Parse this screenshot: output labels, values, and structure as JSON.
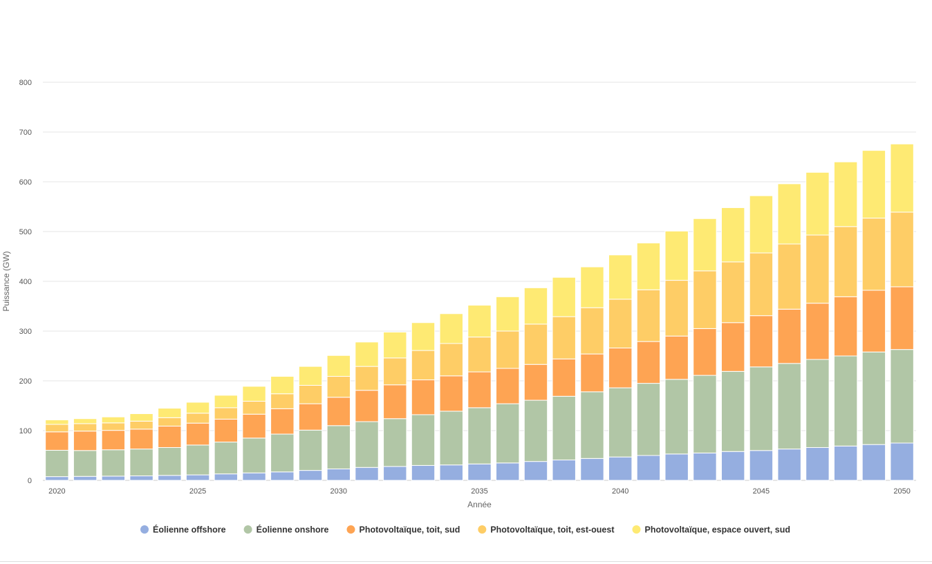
{
  "chart_data": {
    "type": "bar",
    "stacked": true,
    "xlabel": "Année",
    "ylabel": "Puissance (GW)",
    "ylim": [
      0,
      800
    ],
    "yticks": [
      0,
      100,
      200,
      300,
      400,
      500,
      600,
      700,
      800
    ],
    "xticks": [
      2020,
      2025,
      2030,
      2035,
      2040,
      2045,
      2050
    ],
    "grid": true,
    "legend_position": "bottom-center",
    "categories": [
      2020,
      2021,
      2022,
      2023,
      2024,
      2025,
      2026,
      2027,
      2028,
      2029,
      2030,
      2031,
      2032,
      2033,
      2034,
      2035,
      2036,
      2037,
      2038,
      2039,
      2040,
      2041,
      2042,
      2043,
      2044,
      2045,
      2046,
      2047,
      2048,
      2049,
      2050
    ],
    "series": [
      {
        "name": "Éolienne offshore",
        "color": "#95aee0",
        "values": [
          7.5,
          8,
          8.5,
          9,
          10,
          11,
          13,
          15,
          17,
          20,
          23,
          26,
          28,
          30,
          31,
          33,
          35,
          38,
          41,
          44,
          47,
          50,
          53,
          55,
          58,
          60,
          63,
          66,
          69,
          72,
          75
        ]
      },
      {
        "name": "Éolienne onshore",
        "color": "#b1c6a6",
        "values": [
          53,
          52,
          53,
          54,
          56,
          60,
          64,
          70,
          76,
          81,
          87,
          92,
          96,
          102,
          108,
          113,
          119,
          123,
          128,
          134,
          139,
          145,
          150,
          156,
          161,
          168,
          172,
          177,
          181,
          186,
          188
        ]
      },
      {
        "name": "Photovoltaïque, toit, sud",
        "color": "#fea453",
        "values": [
          37,
          39,
          39,
          40,
          43,
          44,
          46,
          48,
          51,
          53,
          57,
          63,
          68,
          70,
          71,
          72,
          71,
          72,
          75,
          76,
          80,
          84,
          87,
          94,
          98,
          103,
          109,
          113,
          119,
          124,
          126
        ]
      },
      {
        "name": "Photovoltaïque, toit, est-ouest",
        "color": "#fecd66",
        "values": [
          15,
          15,
          15,
          16,
          17,
          20,
          23,
          26,
          30,
          37,
          42,
          48,
          54,
          59,
          65,
          70,
          75,
          81,
          85,
          93,
          98,
          104,
          112,
          116,
          122,
          126,
          131,
          137,
          141,
          145,
          150
        ]
      },
      {
        "name": "Photovoltaïque, espace ouvert, sud",
        "color": "#feea73",
        "values": [
          9,
          10,
          12,
          15,
          19,
          22,
          25,
          30,
          35,
          38,
          42,
          49,
          52,
          56,
          60,
          64,
          69,
          73,
          79,
          82,
          89,
          94,
          99,
          105,
          109,
          115,
          121,
          126,
          130,
          136,
          137
        ]
      }
    ]
  }
}
